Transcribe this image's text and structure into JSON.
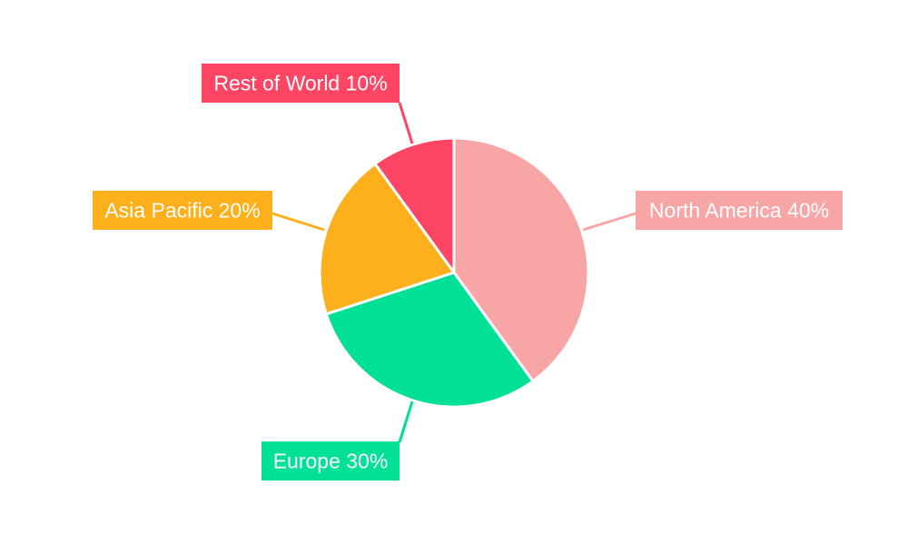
{
  "chart_data": {
    "type": "pie",
    "title": "",
    "start_angle_deg": 0,
    "direction": "clockwise",
    "legend": "none",
    "slices": [
      {
        "label": "North America 40%",
        "name": "North America",
        "value": 40,
        "color": "#f8a5a6"
      },
      {
        "label": "Europe 30%",
        "name": "Europe",
        "value": 30,
        "color": "#00e096"
      },
      {
        "label": "Asia Pacific 20%",
        "name": "Asia Pacific",
        "value": 20,
        "color": "#fdb01b"
      },
      {
        "label": "Rest of World 10%",
        "name": "Rest of World",
        "value": 10,
        "color": "#ff4563"
      }
    ]
  }
}
